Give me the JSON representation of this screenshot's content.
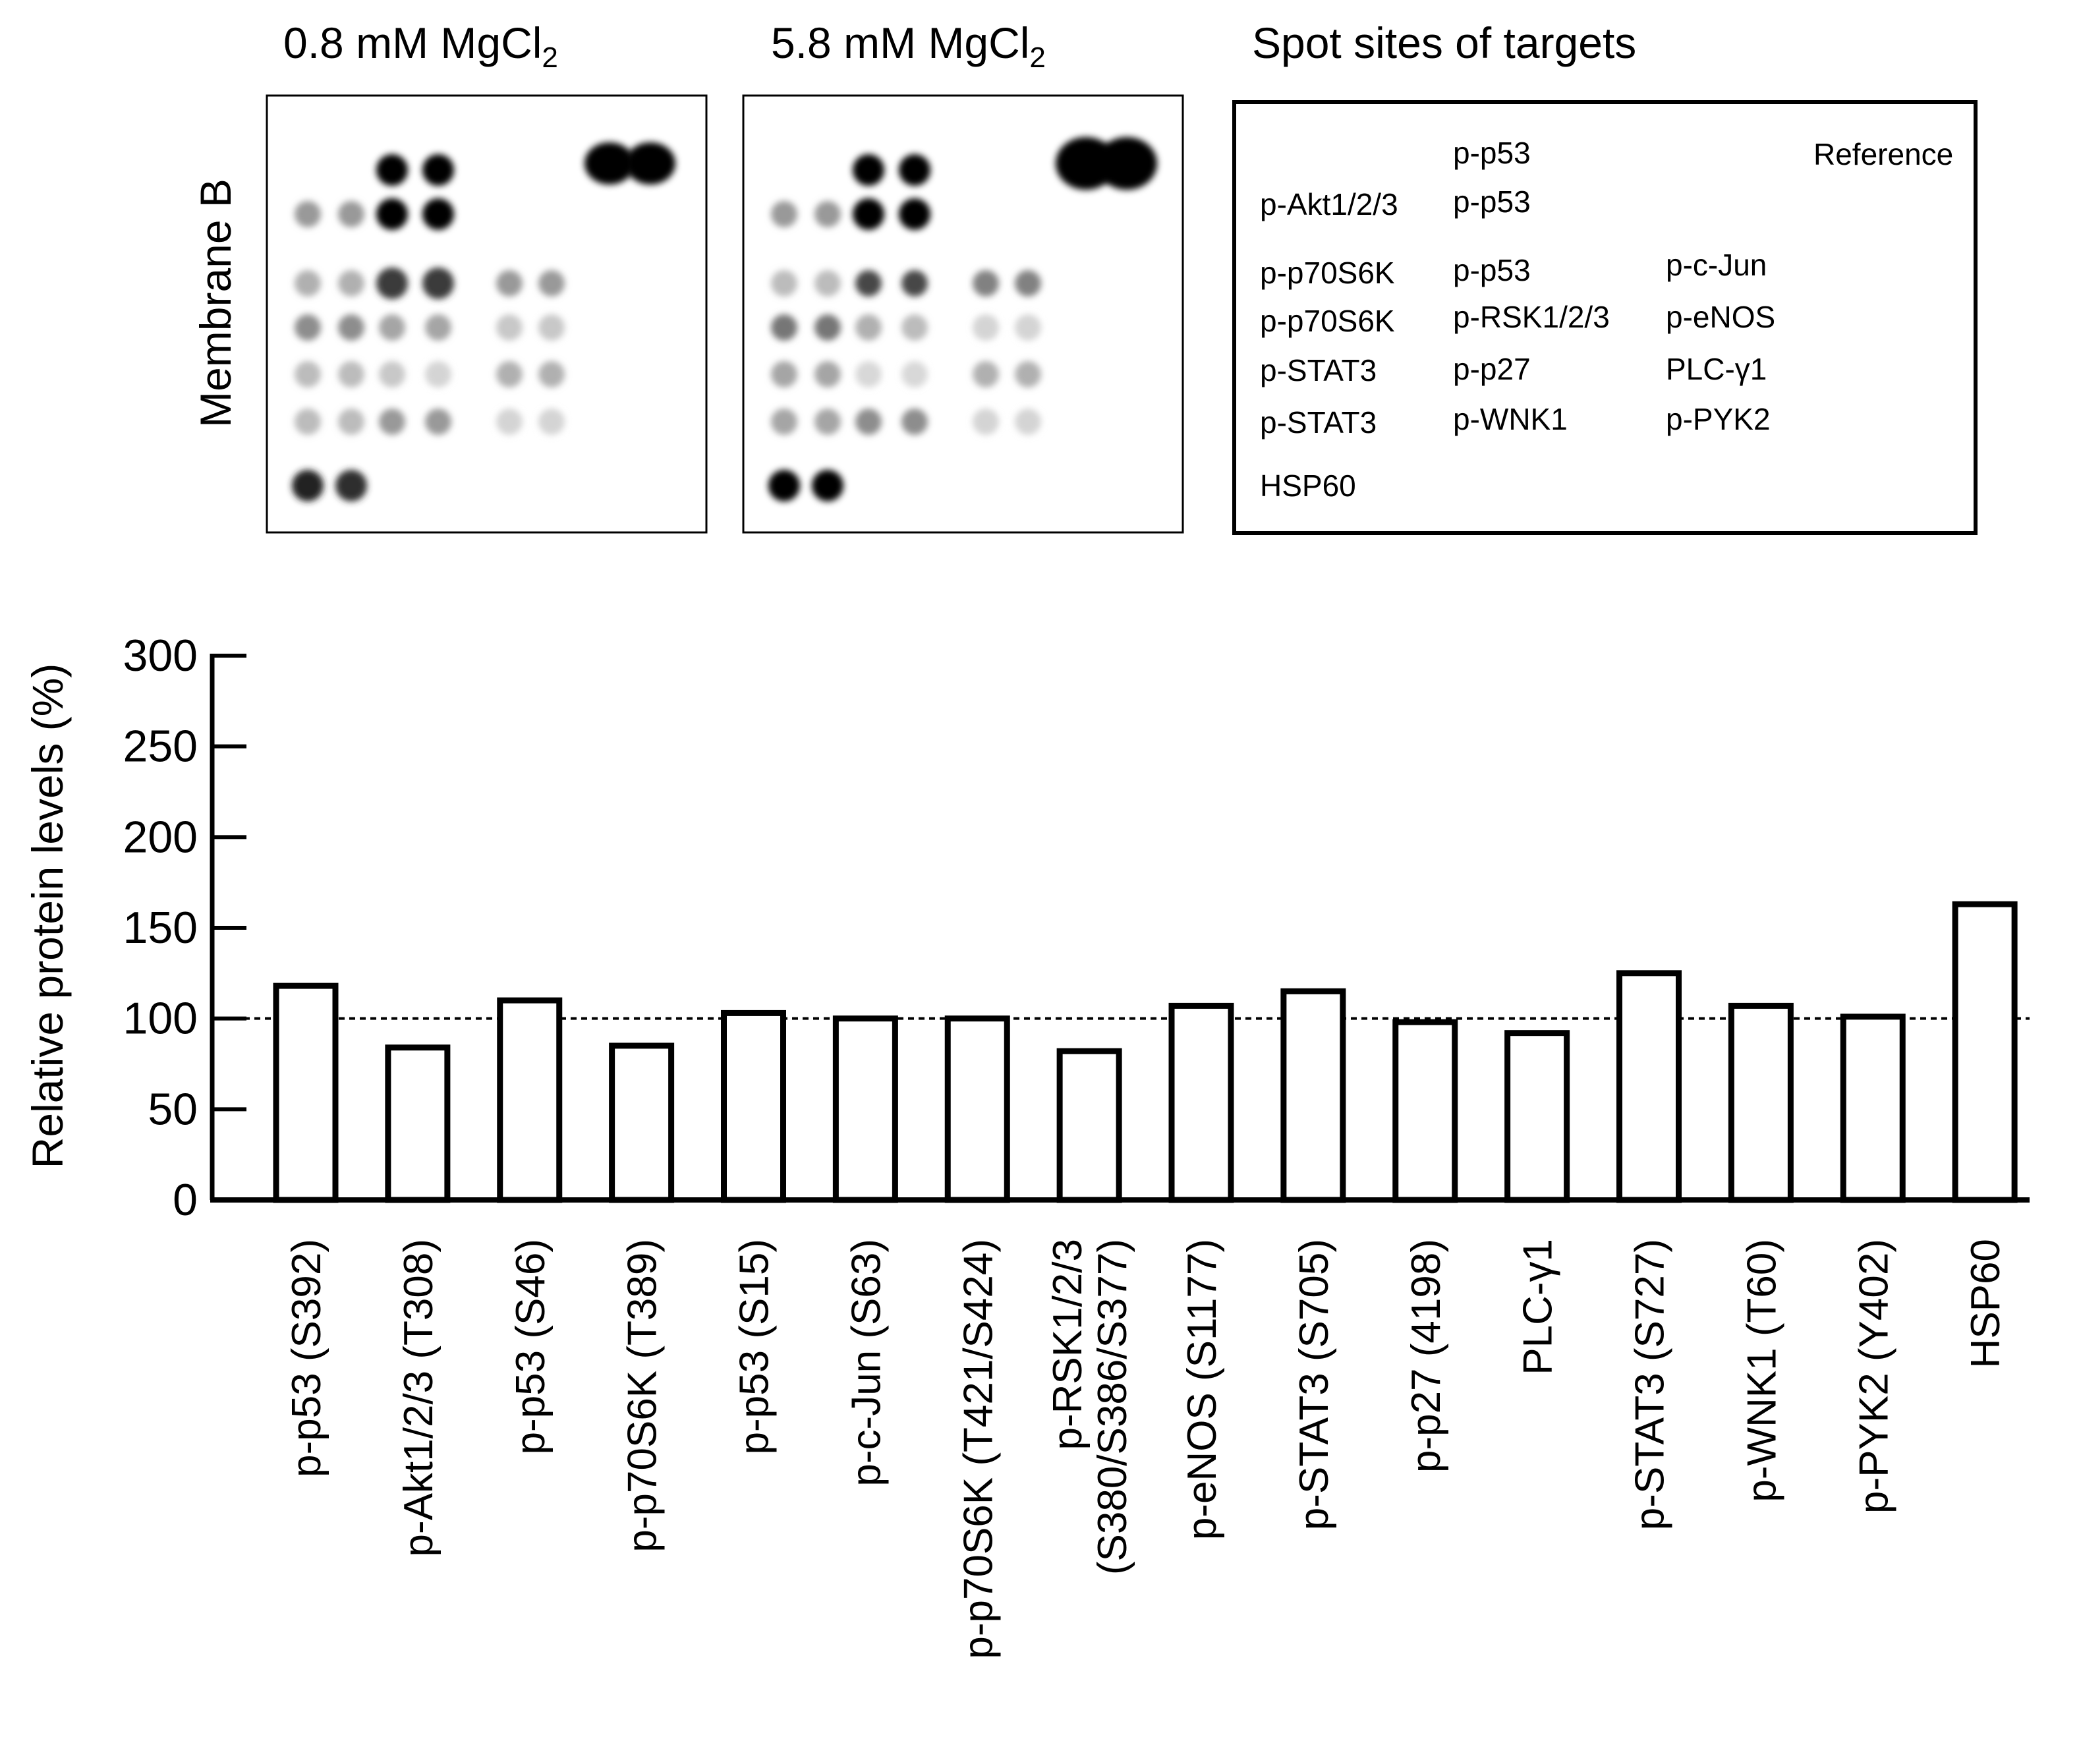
{
  "membranes": {
    "left_title": "0.8 mM MgCl",
    "left_title_sub": "2",
    "right_title": "5.8 mM MgCl",
    "right_title_sub": "2",
    "side_label": "Membrane B",
    "left_spots": [
      {
        "row": 0,
        "col": 6,
        "intensity": 1.0
      },
      {
        "row": 0,
        "col": 7,
        "intensity": 1.0
      },
      {
        "row": 0,
        "col": 2,
        "intensity": 1.0
      },
      {
        "row": 0,
        "col": 3,
        "intensity": 1.0
      },
      {
        "row": 1,
        "col": 0,
        "intensity": 0.35
      },
      {
        "row": 1,
        "col": 1,
        "intensity": 0.35
      },
      {
        "row": 1,
        "col": 2,
        "intensity": 1.0
      },
      {
        "row": 1,
        "col": 3,
        "intensity": 1.0
      },
      {
        "row": 2,
        "col": 0,
        "intensity": 0.25
      },
      {
        "row": 2,
        "col": 1,
        "intensity": 0.25
      },
      {
        "row": 2,
        "col": 2,
        "intensity": 0.75
      },
      {
        "row": 2,
        "col": 3,
        "intensity": 0.75
      },
      {
        "row": 2,
        "col": 4,
        "intensity": 0.35
      },
      {
        "row": 2,
        "col": 5,
        "intensity": 0.35
      },
      {
        "row": 3,
        "col": 0,
        "intensity": 0.4
      },
      {
        "row": 3,
        "col": 1,
        "intensity": 0.4
      },
      {
        "row": 3,
        "col": 2,
        "intensity": 0.3
      },
      {
        "row": 3,
        "col": 3,
        "intensity": 0.3
      },
      {
        "row": 3,
        "col": 4,
        "intensity": 0.15
      },
      {
        "row": 3,
        "col": 5,
        "intensity": 0.15
      },
      {
        "row": 4,
        "col": 0,
        "intensity": 0.2
      },
      {
        "row": 4,
        "col": 1,
        "intensity": 0.2
      },
      {
        "row": 4,
        "col": 2,
        "intensity": 0.15
      },
      {
        "row": 4,
        "col": 3,
        "intensity": 0.1
      },
      {
        "row": 4,
        "col": 4,
        "intensity": 0.25
      },
      {
        "row": 4,
        "col": 5,
        "intensity": 0.25
      },
      {
        "row": 5,
        "col": 0,
        "intensity": 0.2
      },
      {
        "row": 5,
        "col": 1,
        "intensity": 0.2
      },
      {
        "row": 5,
        "col": 2,
        "intensity": 0.35
      },
      {
        "row": 5,
        "col": 3,
        "intensity": 0.35
      },
      {
        "row": 5,
        "col": 4,
        "intensity": 0.1
      },
      {
        "row": 5,
        "col": 5,
        "intensity": 0.1
      },
      {
        "row": 6,
        "col": 0,
        "intensity": 0.85
      },
      {
        "row": 6,
        "col": 1,
        "intensity": 0.8
      }
    ],
    "right_spots": [
      {
        "row": 0,
        "col": 6,
        "intensity": 1.0
      },
      {
        "row": 0,
        "col": 7,
        "intensity": 1.0
      },
      {
        "row": 0,
        "col": 2,
        "intensity": 1.0
      },
      {
        "row": 0,
        "col": 3,
        "intensity": 1.0
      },
      {
        "row": 1,
        "col": 0,
        "intensity": 0.35
      },
      {
        "row": 1,
        "col": 1,
        "intensity": 0.35
      },
      {
        "row": 1,
        "col": 2,
        "intensity": 1.0
      },
      {
        "row": 1,
        "col": 3,
        "intensity": 1.0
      },
      {
        "row": 2,
        "col": 0,
        "intensity": 0.2
      },
      {
        "row": 2,
        "col": 1,
        "intensity": 0.2
      },
      {
        "row": 2,
        "col": 2,
        "intensity": 0.7
      },
      {
        "row": 2,
        "col": 3,
        "intensity": 0.7
      },
      {
        "row": 2,
        "col": 4,
        "intensity": 0.45
      },
      {
        "row": 2,
        "col": 5,
        "intensity": 0.45
      },
      {
        "row": 3,
        "col": 0,
        "intensity": 0.5
      },
      {
        "row": 3,
        "col": 1,
        "intensity": 0.5
      },
      {
        "row": 3,
        "col": 2,
        "intensity": 0.25
      },
      {
        "row": 3,
        "col": 3,
        "intensity": 0.2
      },
      {
        "row": 3,
        "col": 4,
        "intensity": 0.1
      },
      {
        "row": 3,
        "col": 5,
        "intensity": 0.1
      },
      {
        "row": 4,
        "col": 0,
        "intensity": 0.3
      },
      {
        "row": 4,
        "col": 1,
        "intensity": 0.3
      },
      {
        "row": 4,
        "col": 2,
        "intensity": 0.08
      },
      {
        "row": 4,
        "col": 3,
        "intensity": 0.08
      },
      {
        "row": 4,
        "col": 4,
        "intensity": 0.25
      },
      {
        "row": 4,
        "col": 5,
        "intensity": 0.25
      },
      {
        "row": 5,
        "col": 0,
        "intensity": 0.3
      },
      {
        "row": 5,
        "col": 1,
        "intensity": 0.3
      },
      {
        "row": 5,
        "col": 2,
        "intensity": 0.4
      },
      {
        "row": 5,
        "col": 3,
        "intensity": 0.4
      },
      {
        "row": 5,
        "col": 4,
        "intensity": 0.1
      },
      {
        "row": 5,
        "col": 5,
        "intensity": 0.1
      },
      {
        "row": 6,
        "col": 0,
        "intensity": 1.0
      },
      {
        "row": 6,
        "col": 1,
        "intensity": 1.0
      }
    ]
  },
  "spot_map": {
    "title": "Spot sites of targets",
    "entries": [
      {
        "id": "p53-a",
        "text": "p-p53"
      },
      {
        "id": "reference",
        "text": "Reference"
      },
      {
        "id": "akt",
        "text": "p-Akt1/2/3"
      },
      {
        "id": "p53-b",
        "text": "p-p53"
      },
      {
        "id": "p70-a",
        "text": "p-p70S6K"
      },
      {
        "id": "p53-c",
        "text": "p-p53"
      },
      {
        "id": "cjun",
        "text": "p-c-Jun"
      },
      {
        "id": "p70-b",
        "text": "p-p70S6K"
      },
      {
        "id": "rsk",
        "text": "p-RSK1/2/3"
      },
      {
        "id": "enos",
        "text": "p-eNOS"
      },
      {
        "id": "stat3-a",
        "text": "p-STAT3"
      },
      {
        "id": "p27",
        "text": "p-p27"
      },
      {
        "id": "plc",
        "text": "PLC-γ1"
      },
      {
        "id": "stat3-b",
        "text": "p-STAT3"
      },
      {
        "id": "wnk1",
        "text": "p-WNK1"
      },
      {
        "id": "pyk2",
        "text": "p-PYK2"
      },
      {
        "id": "hsp60",
        "text": "HSP60"
      }
    ]
  },
  "chart_data": {
    "type": "bar",
    "title": "",
    "xlabel": "",
    "ylabel": "Relative protein levels (%)",
    "ylim": [
      0,
      300
    ],
    "yticks": [
      0,
      50,
      100,
      150,
      200,
      250,
      300
    ],
    "reference_line": 100,
    "categories": [
      [
        "p-p53 (S392)"
      ],
      [
        "p-Akt1/2/3 (T308)"
      ],
      [
        "p-p53 (S46)"
      ],
      [
        "p-p70S6K (T389)"
      ],
      [
        "p-p53 (S15)"
      ],
      [
        "p-c-Jun (S63)"
      ],
      [
        "p-p70S6K (T421/S424)"
      ],
      [
        "p-RSK1/2/3",
        "(S380/S386/S377)"
      ],
      [
        "p-eNOS (S1177)"
      ],
      [
        "p-STAT3 (S705)"
      ],
      [
        "p-p27 (4198)"
      ],
      [
        "PLC-γ1"
      ],
      [
        "p-STAT3 (S727)"
      ],
      [
        "p-WNK1 (T60)"
      ],
      [
        "p-PYK2 (Y402)"
      ],
      [
        "HSP60"
      ]
    ],
    "values": [
      118,
      84,
      110,
      85,
      103,
      100,
      100,
      82,
      107,
      115,
      98,
      92,
      125,
      107,
      101,
      163
    ]
  }
}
